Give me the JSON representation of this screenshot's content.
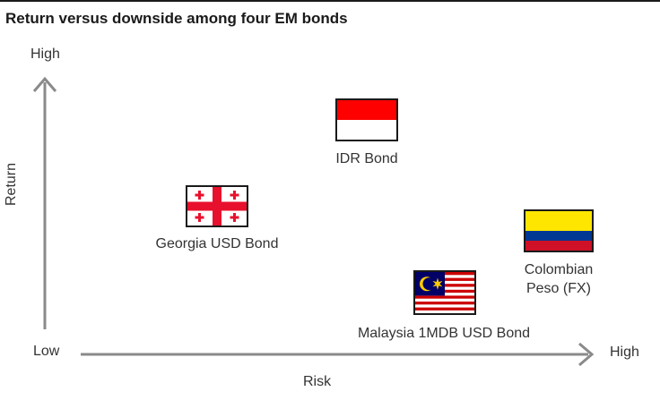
{
  "title": "Return versus downside among four EM bonds",
  "axes": {
    "y_title": "Return",
    "x_title": "Risk",
    "y_high": "High",
    "origin_low": "Low",
    "x_high": "High"
  },
  "items": [
    {
      "id": "idr",
      "label": "IDR Bond",
      "flag": "indonesia-flag"
    },
    {
      "id": "georgia",
      "label": "Georgia USD Bond",
      "flag": "georgia-flag"
    },
    {
      "id": "colombia",
      "label_line1": "Colombian",
      "label_line2": "Peso (FX)",
      "flag": "colombia-flag"
    },
    {
      "id": "malaysia",
      "label": "Malaysia 1MDB USD Bond",
      "flag": "malaysia-flag"
    }
  ],
  "colors": {
    "axis": "#8a8a8a",
    "text": "#333333"
  }
}
